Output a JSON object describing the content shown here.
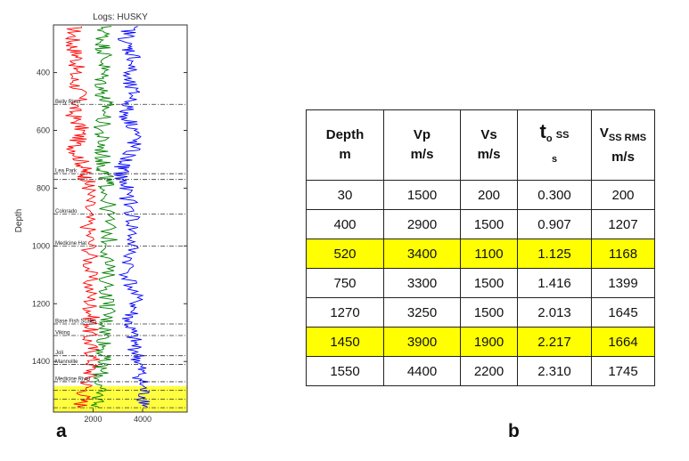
{
  "panel_labels": {
    "a": "a",
    "b": "b"
  },
  "chart_data": {
    "type": "line",
    "title": "Logs: HUSKY",
    "ylabel": "Depth",
    "xlabel": "",
    "y_reversed": true,
    "ylim": [
      235,
      1575
    ],
    "xlim": [
      400,
      5800
    ],
    "yticks": [
      400,
      600,
      800,
      1000,
      1200,
      1400
    ],
    "xticks": [
      2000,
      4000
    ],
    "grid": false,
    "series": [
      {
        "color": "#ff0000",
        "points": [
          [
            1250,
            240
          ],
          [
            1150,
            300
          ],
          [
            1400,
            350
          ],
          [
            1200,
            420
          ],
          [
            1500,
            480
          ],
          [
            1150,
            540
          ],
          [
            1550,
            600
          ],
          [
            1250,
            660
          ],
          [
            1600,
            720
          ],
          [
            1700,
            760
          ],
          [
            1850,
            800
          ],
          [
            1750,
            900
          ],
          [
            1900,
            1000
          ],
          [
            1850,
            1100
          ],
          [
            1900,
            1200
          ],
          [
            1950,
            1260
          ],
          [
            1800,
            1320
          ],
          [
            2000,
            1380
          ],
          [
            1900,
            1440
          ],
          [
            1700,
            1500
          ],
          [
            1500,
            1560
          ]
        ]
      },
      {
        "color": "#008000",
        "points": [
          [
            2450,
            240
          ],
          [
            2400,
            300
          ],
          [
            2500,
            350
          ],
          [
            2350,
            420
          ],
          [
            2400,
            480
          ],
          [
            2550,
            520
          ],
          [
            2300,
            600
          ],
          [
            2350,
            660
          ],
          [
            2400,
            720
          ],
          [
            2500,
            760
          ],
          [
            2550,
            800
          ],
          [
            2600,
            900
          ],
          [
            2650,
            1000
          ],
          [
            2550,
            1100
          ],
          [
            2600,
            1200
          ],
          [
            2550,
            1260
          ],
          [
            2500,
            1320
          ],
          [
            2400,
            1380
          ],
          [
            2300,
            1440
          ],
          [
            2200,
            1500
          ],
          [
            2250,
            1560
          ]
        ]
      },
      {
        "color": "#0000ff",
        "points": [
          [
            3500,
            240
          ],
          [
            3300,
            300
          ],
          [
            3700,
            350
          ],
          [
            3300,
            420
          ],
          [
            3650,
            480
          ],
          [
            3250,
            540
          ],
          [
            3750,
            600
          ],
          [
            3600,
            660
          ],
          [
            3200,
            720
          ],
          [
            3100,
            760
          ],
          [
            3300,
            800
          ],
          [
            3600,
            900
          ],
          [
            3550,
            1000
          ],
          [
            3400,
            1100
          ],
          [
            3750,
            1200
          ],
          [
            3400,
            1260
          ],
          [
            3600,
            1320
          ],
          [
            3800,
            1380
          ],
          [
            3900,
            1440
          ],
          [
            4000,
            1500
          ],
          [
            4200,
            1560
          ]
        ]
      }
    ],
    "markers": [
      {
        "depth": 510,
        "label": "Belly River"
      },
      {
        "depth": 750,
        "label": "Lea Park"
      },
      {
        "depth": 770,
        "label": ""
      },
      {
        "depth": 890,
        "label": "Colorado"
      },
      {
        "depth": 1000,
        "label": "Medicine Hat"
      },
      {
        "depth": 1270,
        "label": "Base Fish Scales"
      },
      {
        "depth": 1310,
        "label": "Viking"
      },
      {
        "depth": 1380,
        "label": "Joli"
      },
      {
        "depth": 1410,
        "label": "Mannville"
      },
      {
        "depth": 1470,
        "label": "Medicine River"
      },
      {
        "depth": 1500,
        "label": ""
      },
      {
        "depth": 1530,
        "label": ""
      },
      {
        "depth": 1560,
        "label": ""
      }
    ],
    "highlight_band": [
      1485,
      1575
    ]
  },
  "table": {
    "headers": [
      {
        "line1": "Depth",
        "line2": "m"
      },
      {
        "line1": "Vp",
        "line2": "m/s"
      },
      {
        "line1": "Vs",
        "line2": "m/s"
      },
      {
        "main": "t",
        "sub": "o",
        "suffix": "SS",
        "line2": "s"
      },
      {
        "main": "V",
        "sub": "SS RMS",
        "line2": "m/s"
      }
    ],
    "rows": [
      {
        "cells": [
          "30",
          "1500",
          "200",
          "0.300",
          "200"
        ],
        "highlight": false
      },
      {
        "cells": [
          "400",
          "2900",
          "1500",
          "0.907",
          "1207"
        ],
        "highlight": false
      },
      {
        "cells": [
          "520",
          "3400",
          "1100",
          "1.125",
          "1168"
        ],
        "highlight": true
      },
      {
        "cells": [
          "750",
          "3300",
          "1500",
          "1.416",
          "1399"
        ],
        "highlight": false
      },
      {
        "cells": [
          "1270",
          "3250",
          "1500",
          "2.013",
          "1645"
        ],
        "highlight": false
      },
      {
        "cells": [
          "1450",
          "3900",
          "1900",
          "2.217",
          "1664"
        ],
        "highlight": true
      },
      {
        "cells": [
          "1550",
          "4400",
          "2200",
          "2.310",
          "1745"
        ],
        "highlight": false
      }
    ],
    "highlight_color": "#ffff00"
  }
}
